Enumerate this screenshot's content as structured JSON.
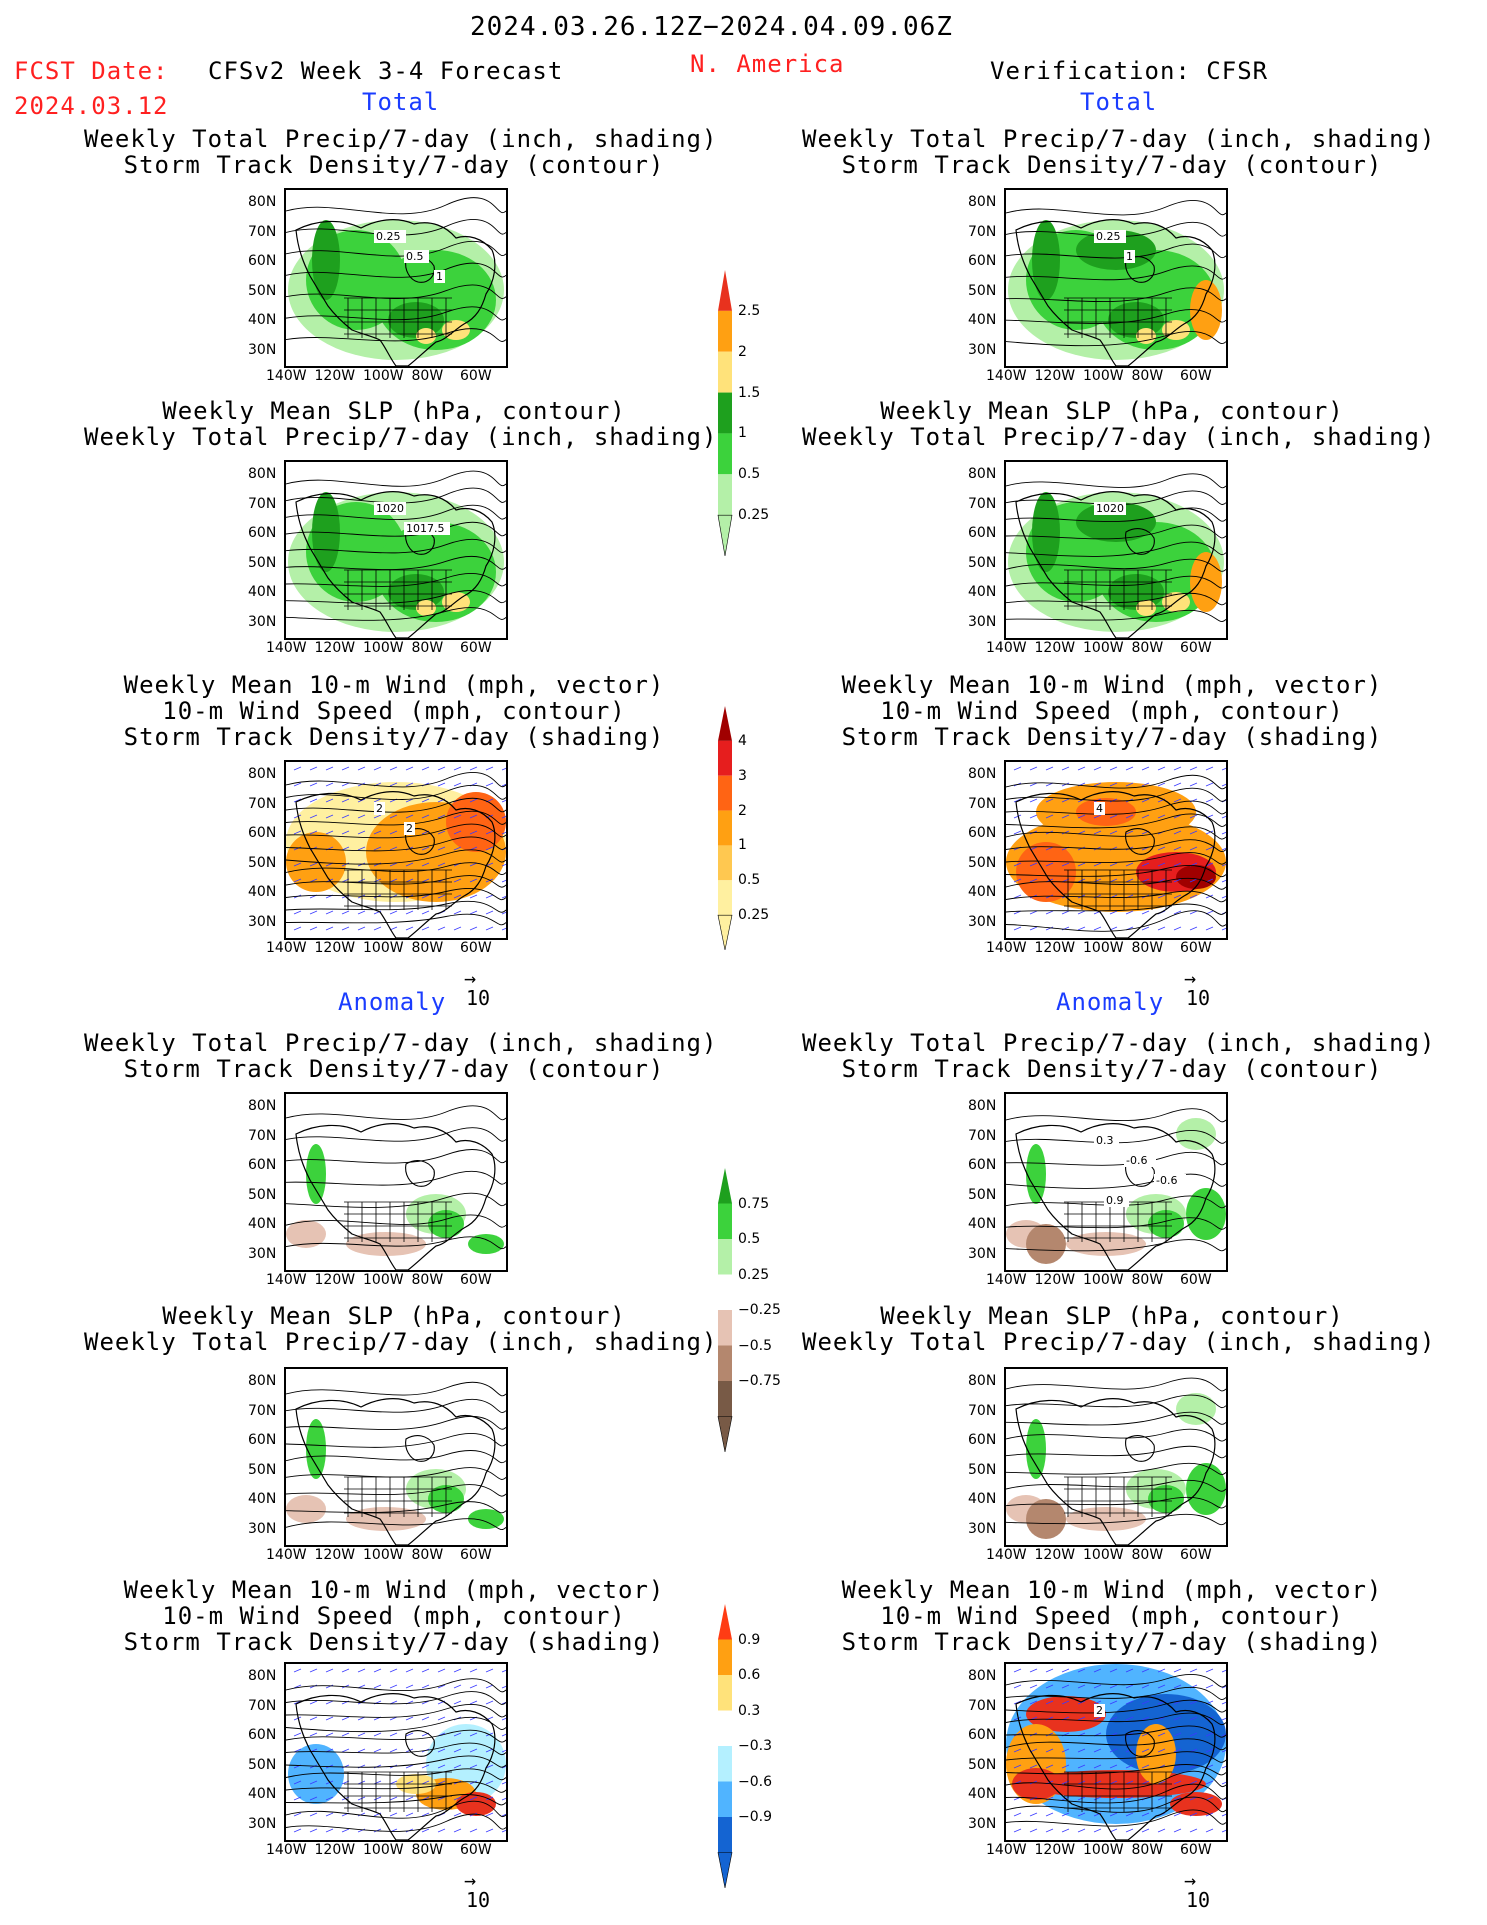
{
  "header": {
    "date_range": "2024.03.26.12Z−2024.04.09.06Z",
    "fcst_label": "FCST Date:",
    "fcst_date": "2024.03.12",
    "model": "CFSv2 Week 3-4 Forecast",
    "region": "N. America",
    "verification": "Verification: CFSR"
  },
  "sections": {
    "total": "Total",
    "anomaly": "Anomaly"
  },
  "titles": {
    "precip": [
      "Weekly Total Precip/7-day (inch, shading)",
      "Storm Track Density/7-day (contour)"
    ],
    "slp": [
      "Weekly Mean SLP (hPa, contour)",
      "Weekly Total Precip/7-day (inch, shading)"
    ],
    "wind": [
      "Weekly Mean 10-m Wind (mph, vector)",
      "10-m Wind Speed (mph, contour)",
      "Storm Track Density/7-day (shading)"
    ]
  },
  "axes": {
    "lat_ticks": [
      "80N",
      "70N",
      "60N",
      "50N",
      "40N",
      "30N"
    ],
    "lon_ticks": [
      "140W",
      "120W",
      "100W",
      "80W",
      "60W"
    ]
  },
  "vector_ref": "10",
  "contour_labels": {
    "fc_precip_total": [
      "0.25",
      "0.5",
      "1"
    ],
    "ver_precip_total": [
      "0.25",
      "1"
    ],
    "fc_slp_total": [
      "1020",
      "1017.5"
    ],
    "ver_slp_total": [
      "1020"
    ],
    "fc_wind_total": [
      "2",
      "2"
    ],
    "ver_wind_total": [
      "4"
    ],
    "ver_precip_anom": [
      "0.3",
      "-0.6",
      "-0.6",
      "0.9"
    ],
    "ver_wind_anom": [
      "2"
    ]
  },
  "colorbars": {
    "precip_total": {
      "labels": [
        "2.5",
        "2",
        "1.5",
        "1",
        "0.5",
        "0.25"
      ],
      "colors": [
        "#e8321e",
        "#ffa012",
        "#ffe27a",
        "#1ea01e",
        "#3cd23c",
        "#b4f0a8"
      ]
    },
    "storm_total": {
      "labels": [
        "4",
        "3",
        "2",
        "1",
        "0.5",
        "0.25"
      ],
      "colors": [
        "#a00000",
        "#e61e1e",
        "#ff6414",
        "#ffa012",
        "#ffc850",
        "#fff0a0"
      ]
    },
    "precip_anom": {
      "labels": [
        "0.75",
        "0.5",
        "0.25",
        "−0.25",
        "−0.5",
        "−0.75"
      ],
      "colors": [
        "#1ea01e",
        "#3cd23c",
        "#b4f0a8",
        "#ffffff",
        "#e6c3b4",
        "#b4876e",
        "#785a46"
      ]
    },
    "storm_anom": {
      "labels": [
        "0.9",
        "0.6",
        "0.3",
        "−0.3",
        "−0.6",
        "−0.9"
      ],
      "colors": [
        "#ff3c14",
        "#ffa012",
        "#ffe27a",
        "#ffffff",
        "#b4f0ff",
        "#50b4ff",
        "#1464d2"
      ]
    }
  }
}
